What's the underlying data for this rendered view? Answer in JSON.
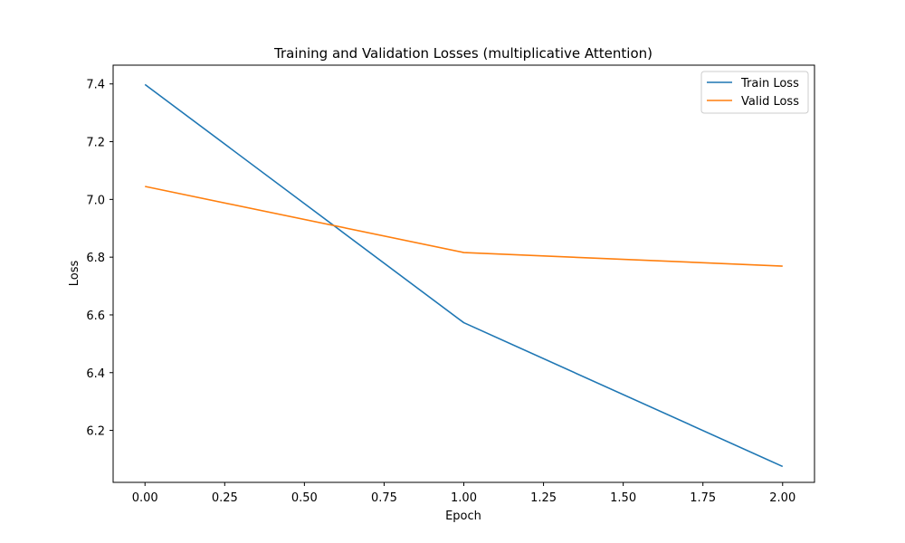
{
  "chart_data": {
    "type": "line",
    "title": "Training and Validation Losses (multiplicative Attention)",
    "xlabel": "Epoch",
    "ylabel": "Loss",
    "x": [
      0,
      1,
      2
    ],
    "xlim": [
      -0.1,
      2.1
    ],
    "ylim": [
      6.02,
      7.465
    ],
    "xticks": [
      0.0,
      0.25,
      0.5,
      0.75,
      1.0,
      1.25,
      1.5,
      1.75,
      2.0
    ],
    "xtick_labels": [
      "0.00",
      "0.25",
      "0.50",
      "0.75",
      "1.00",
      "1.25",
      "1.50",
      "1.75",
      "2.00"
    ],
    "yticks": [
      6.2,
      6.4,
      6.6,
      6.8,
      7.0,
      7.2,
      7.4
    ],
    "ytick_labels": [
      "6.2",
      "6.4",
      "6.6",
      "6.8",
      "7.0",
      "7.2",
      "7.4"
    ],
    "grid": false,
    "legend_position": "top-right",
    "series": [
      {
        "name": "Train Loss",
        "color": "#1f77b4",
        "values": [
          7.398,
          6.573,
          6.075
        ]
      },
      {
        "name": "Valid Loss",
        "color": "#ff7f0e",
        "values": [
          7.045,
          6.816,
          6.769
        ]
      }
    ]
  }
}
